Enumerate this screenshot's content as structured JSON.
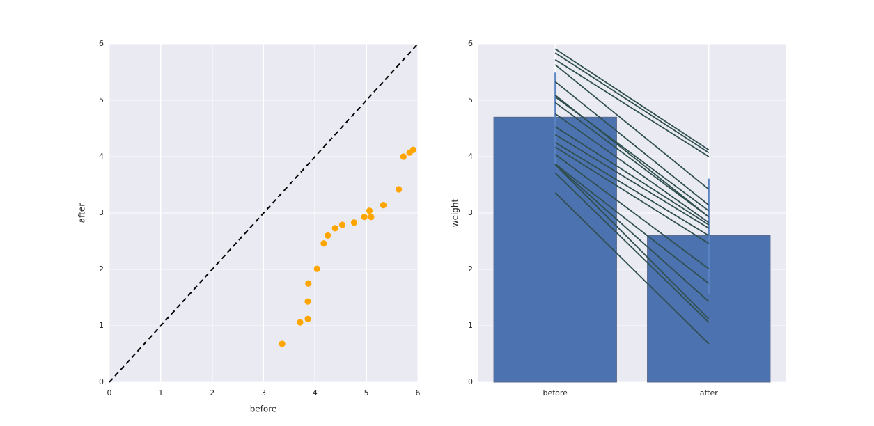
{
  "figure": {
    "background": "#ffffff",
    "axes_background": "#EAEAF2",
    "grid_color": "#FFFFFF",
    "tick_color": "#262626"
  },
  "chart_data": [
    {
      "type": "scatter",
      "title": "",
      "xlabel": "before",
      "ylabel": "after",
      "xlim": [
        0,
        6
      ],
      "ylim": [
        0,
        6
      ],
      "xticks": [
        "0",
        "1",
        "2",
        "3",
        "4",
        "5",
        "6"
      ],
      "yticks": [
        "0",
        "1",
        "2",
        "3",
        "4",
        "5",
        "6"
      ],
      "grid": true,
      "marker_color": "#FFA500",
      "identity_line": {
        "from": [
          0,
          0
        ],
        "to": [
          6,
          6
        ],
        "color": "#000000",
        "style": "dashed"
      },
      "x": [
        3.36,
        3.71,
        3.86,
        3.86,
        3.87,
        4.04,
        4.17,
        4.25,
        4.39,
        4.53,
        4.76,
        4.96,
        5.06,
        5.09,
        5.33,
        5.63,
        5.72,
        5.84,
        5.91
      ],
      "y": [
        0.68,
        1.06,
        1.12,
        1.43,
        1.75,
        2.01,
        2.46,
        2.6,
        2.73,
        2.79,
        2.83,
        2.93,
        3.04,
        2.93,
        3.14,
        3.42,
        4.0,
        4.07,
        4.12
      ]
    },
    {
      "type": "bar",
      "title": "",
      "xlabel": "",
      "ylabel": "weight",
      "categories": [
        "before",
        "after"
      ],
      "values": [
        4.7,
        2.6
      ],
      "error_bars": [
        [
          3.87,
          5.49
        ],
        [
          1.56,
          3.61
        ]
      ],
      "ylim": [
        0,
        6
      ],
      "yticks": [
        "0",
        "1",
        "2",
        "3",
        "4",
        "5",
        "6"
      ],
      "grid": true,
      "bar_color": "#4C72B0",
      "bar_edge_color": "#5A6B8C",
      "error_color": "#5B84C4",
      "pair_line_color": "#2F4F4F",
      "pair_lines": {
        "before": [
          3.36,
          3.71,
          3.86,
          3.86,
          3.87,
          4.04,
          4.17,
          4.25,
          4.39,
          4.53,
          4.76,
          4.96,
          5.06,
          5.09,
          5.33,
          5.63,
          5.72,
          5.84,
          5.91
        ],
        "after": [
          0.68,
          1.06,
          1.12,
          1.43,
          1.75,
          2.01,
          2.46,
          2.6,
          2.73,
          2.79,
          2.83,
          2.93,
          3.04,
          2.93,
          3.14,
          3.42,
          4.0,
          4.07,
          4.12
        ]
      }
    }
  ]
}
